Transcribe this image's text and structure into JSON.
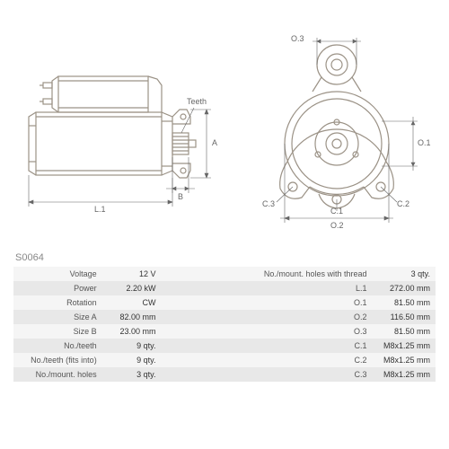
{
  "part_code": "S0064",
  "diagram": {
    "stroke_color": "#9b9286",
    "dim_color": "#666666",
    "bg_color": "#ffffff",
    "labels": {
      "teeth": "Teeth",
      "A": "A",
      "B": "B",
      "L1": "L.1",
      "O1": "O.1",
      "O2": "O.2",
      "O3": "O.3",
      "C1": "C.1",
      "C2": "C.2",
      "C3": "C.3"
    }
  },
  "specs": {
    "left": [
      {
        "label": "Voltage",
        "value": "12 V"
      },
      {
        "label": "Power",
        "value": "2.20 kW"
      },
      {
        "label": "Rotation",
        "value": "CW"
      },
      {
        "label": "Size A",
        "value": "82.00 mm"
      },
      {
        "label": "Size B",
        "value": "23.00 mm"
      },
      {
        "label": "No./teeth",
        "value": "9 qty."
      },
      {
        "label": "No./teeth (fits into)",
        "value": "9 qty."
      },
      {
        "label": "No./mount. holes",
        "value": "3 qty."
      }
    ],
    "right": [
      {
        "label": "No./mount. holes with thread",
        "value": "3 qty."
      },
      {
        "label": "L.1",
        "value": "272.00 mm"
      },
      {
        "label": "O.1",
        "value": "81.50 mm"
      },
      {
        "label": "O.2",
        "value": "116.50 mm"
      },
      {
        "label": "O.3",
        "value": "81.50 mm"
      },
      {
        "label": "C.1",
        "value": "M8x1.25 mm"
      },
      {
        "label": "C.2",
        "value": "M8x1.25 mm"
      },
      {
        "label": "C.3",
        "value": "M8x1.25 mm"
      }
    ]
  }
}
